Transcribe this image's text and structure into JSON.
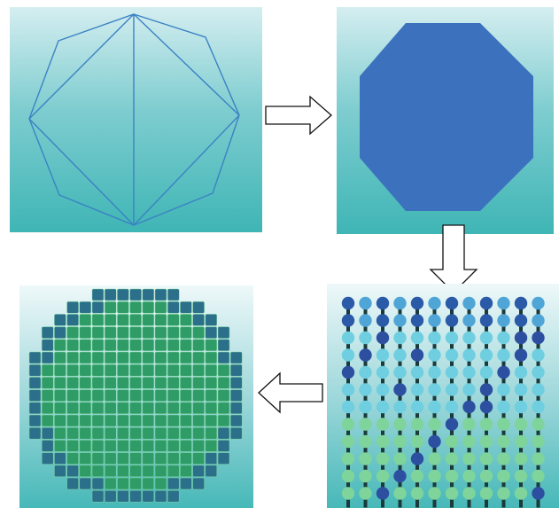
{
  "diagram": {
    "steps": [
      {
        "id": "wireframe-octagon",
        "shape": "triangulated octagon outline",
        "stroke_color": "#3b82c4"
      },
      {
        "id": "filled-octagon",
        "shape": "solid octagon",
        "fill_color": "#3c72bd"
      },
      {
        "id": "pin-grid",
        "shape": "grid of spheres on pins",
        "grid_size": 12
      },
      {
        "id": "assembly-map",
        "shape": "circular lattice of square blocks",
        "fill_color": "#2f9b66"
      }
    ],
    "arrows": [
      {
        "from": "wireframe-octagon",
        "to": "filled-octagon",
        "direction": "right"
      },
      {
        "from": "filled-octagon",
        "to": "pin-grid",
        "direction": "down"
      },
      {
        "from": "pin-grid",
        "to": "assembly-map",
        "direction": "left"
      }
    ],
    "colors": {
      "background_top": "#d5eef0",
      "background_bottom": "#3fb5b5",
      "octagon_fill": "#3c72bd",
      "wire_stroke": "#3b82c4",
      "block_fill": "#2f9b66",
      "sphere_light": "#6fcfe0",
      "sphere_dark": "#2d4fa0",
      "sphere_green": "#7ed49a"
    }
  }
}
